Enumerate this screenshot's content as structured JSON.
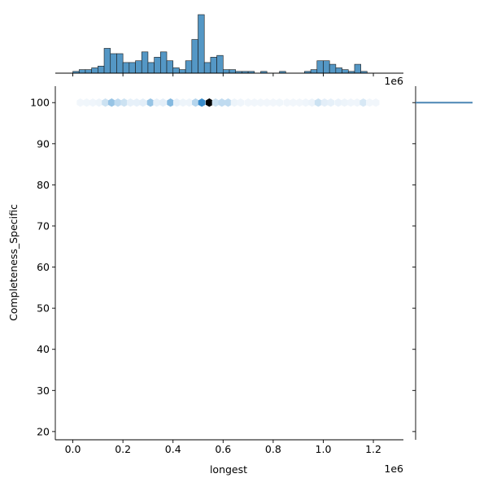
{
  "chart_data": {
    "type": "jointplot-hex",
    "kind": "hex",
    "xlabel": "longest",
    "ylabel": "Completeness_Specific",
    "x_offset_label": "1e6",
    "top_offset_label": "1e6",
    "xlim": [
      -70000,
      1320000
    ],
    "ylim": [
      18,
      104
    ],
    "x_ticks": [
      0.0,
      0.2,
      0.4,
      0.6,
      0.8,
      1.0,
      1.2
    ],
    "x_tick_labels": [
      "0.0",
      "0.2",
      "0.4",
      "0.6",
      "0.8",
      "1.0",
      "1.2"
    ],
    "y_ticks": [
      20,
      30,
      40,
      50,
      60,
      70,
      80,
      90,
      100
    ],
    "y_tick_labels": [
      "20",
      "30",
      "40",
      "50",
      "60",
      "70",
      "80",
      "90",
      "100"
    ],
    "grid": false,
    "legend": "none",
    "colors": {
      "dark": "#000000",
      "mid": "#3b8dcb",
      "light": "#a9cfea",
      "pale": "#e3eef8",
      "hist_fill": "#5497c5",
      "hist_edge": "#1a1a1a",
      "marginal_line": "#4a86b4"
    },
    "hexbin": {
      "y": 100,
      "points": [
        {
          "x": 30000,
          "d": 0.05
        },
        {
          "x": 55000,
          "d": 0.06
        },
        {
          "x": 80000,
          "d": 0.07
        },
        {
          "x": 105000,
          "d": 0.1
        },
        {
          "x": 130000,
          "d": 0.35
        },
        {
          "x": 155000,
          "d": 0.55
        },
        {
          "x": 180000,
          "d": 0.4
        },
        {
          "x": 205000,
          "d": 0.35
        },
        {
          "x": 230000,
          "d": 0.2
        },
        {
          "x": 255000,
          "d": 0.2
        },
        {
          "x": 280000,
          "d": 0.25
        },
        {
          "x": 310000,
          "d": 0.55
        },
        {
          "x": 335000,
          "d": 0.2
        },
        {
          "x": 360000,
          "d": 0.25
        },
        {
          "x": 390000,
          "d": 0.6
        },
        {
          "x": 415000,
          "d": 0.2
        },
        {
          "x": 440000,
          "d": 0.1
        },
        {
          "x": 465000,
          "d": 0.1
        },
        {
          "x": 490000,
          "d": 0.45
        },
        {
          "x": 515000,
          "d": 0.8
        },
        {
          "x": 545000,
          "d": 1.0
        },
        {
          "x": 570000,
          "d": 0.35
        },
        {
          "x": 595000,
          "d": 0.4
        },
        {
          "x": 620000,
          "d": 0.4
        },
        {
          "x": 645000,
          "d": 0.1
        },
        {
          "x": 670000,
          "d": 0.07
        },
        {
          "x": 700000,
          "d": 0.05
        },
        {
          "x": 725000,
          "d": 0.04
        },
        {
          "x": 750000,
          "d": 0.04
        },
        {
          "x": 775000,
          "d": 0.05
        },
        {
          "x": 800000,
          "d": 0.04
        },
        {
          "x": 825000,
          "d": 0.06
        },
        {
          "x": 855000,
          "d": 0.04
        },
        {
          "x": 880000,
          "d": 0.04
        },
        {
          "x": 905000,
          "d": 0.04
        },
        {
          "x": 930000,
          "d": 0.08
        },
        {
          "x": 955000,
          "d": 0.12
        },
        {
          "x": 980000,
          "d": 0.35
        },
        {
          "x": 1005000,
          "d": 0.25
        },
        {
          "x": 1030000,
          "d": 0.2
        },
        {
          "x": 1060000,
          "d": 0.15
        },
        {
          "x": 1085000,
          "d": 0.1
        },
        {
          "x": 1110000,
          "d": 0.08
        },
        {
          "x": 1135000,
          "d": 0.08
        },
        {
          "x": 1160000,
          "d": 0.3
        },
        {
          "x": 1185000,
          "d": 0.05
        },
        {
          "x": 1210000,
          "d": 0.04
        }
      ]
    },
    "top_histogram": {
      "bin_width": 25000,
      "bin_start": 0,
      "counts": [
        1,
        2,
        2,
        3,
        4,
        14,
        11,
        11,
        6,
        6,
        7,
        12,
        6,
        9,
        12,
        7,
        3,
        2,
        7,
        19,
        33,
        6,
        9,
        10,
        2,
        2,
        1,
        1,
        1,
        0,
        1,
        0,
        0,
        1,
        0,
        0,
        0,
        1,
        2,
        7,
        7,
        5,
        3,
        2,
        1,
        5,
        1,
        0,
        0,
        0
      ],
      "max_count": 33
    },
    "right_marginal": {
      "value": 100
    }
  }
}
